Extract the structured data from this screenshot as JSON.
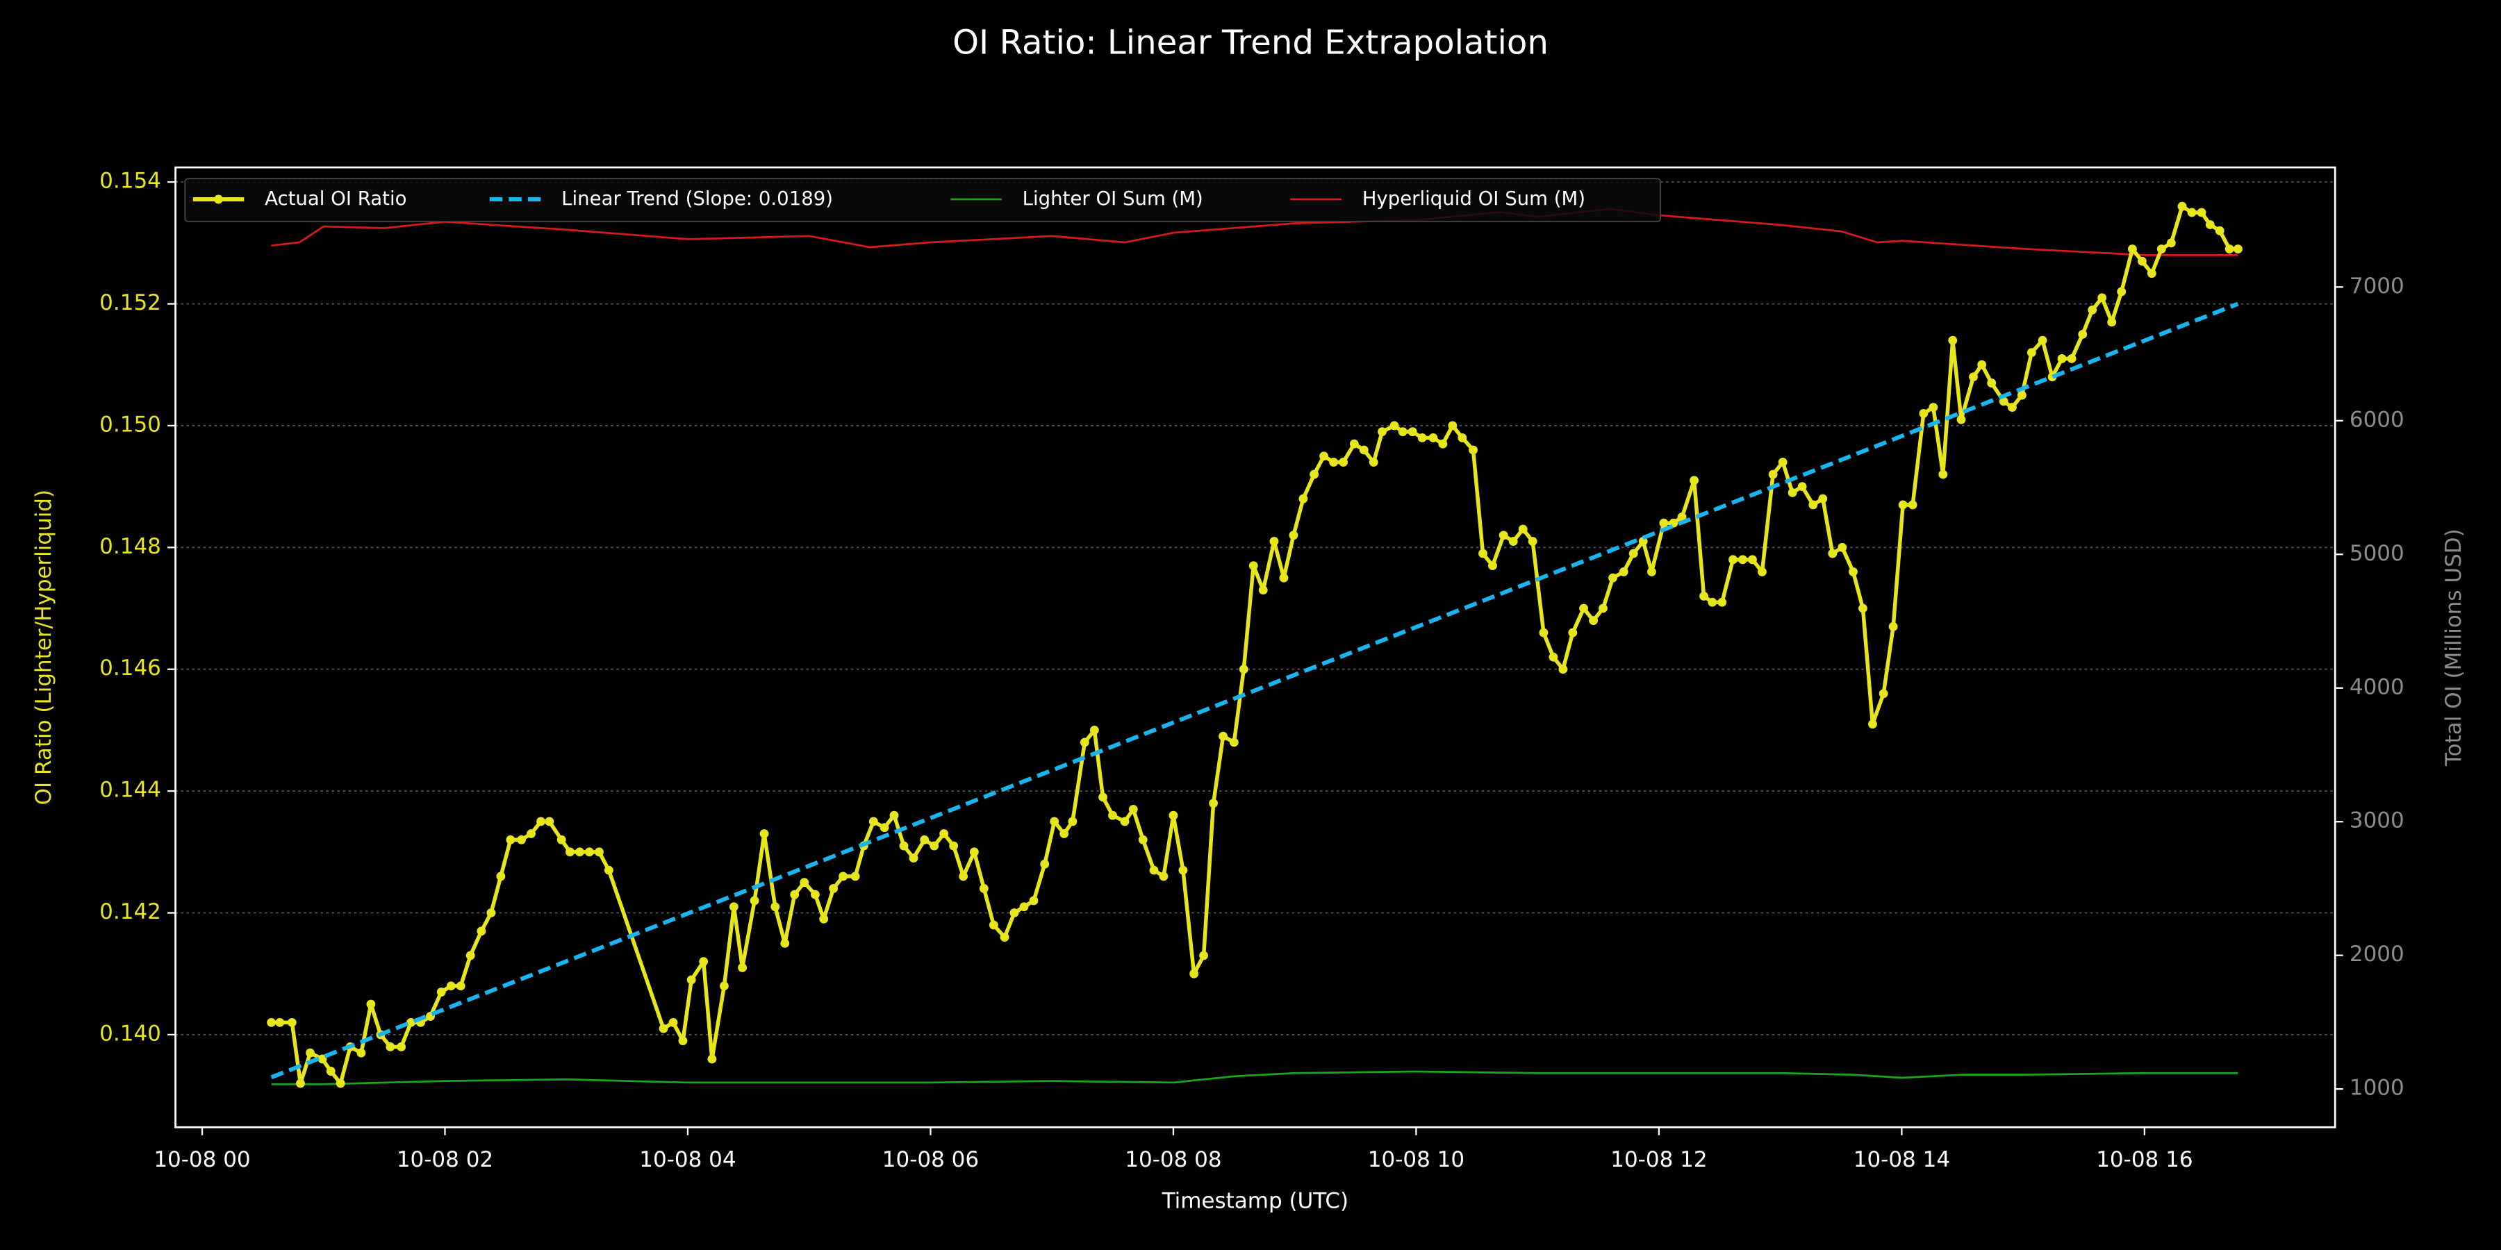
{
  "chart_data": {
    "type": "line",
    "title": "OI Ratio: Linear Trend Extrapolation",
    "xlabel": "Timestamp (UTC)",
    "ylabel": "OI Ratio (Lighter/Hyperliquid)",
    "y2label": "Total OI (Millions USD)",
    "xlim": [
      -0.22,
      17.57
    ],
    "xticks": [
      {
        "value": 0,
        "label": "10-08 00"
      },
      {
        "value": 2,
        "label": "10-08 02"
      },
      {
        "value": 4,
        "label": "10-08 04"
      },
      {
        "value": 6,
        "label": "10-08 06"
      },
      {
        "value": 8,
        "label": "10-08 08"
      },
      {
        "value": 10,
        "label": "10-08 10"
      },
      {
        "value": 12,
        "label": "10-08 12"
      },
      {
        "value": 14,
        "label": "10-08 14"
      },
      {
        "value": 16,
        "label": "10-08 16"
      }
    ],
    "ylim": [
      0.13848,
      0.15424
    ],
    "yticks": [
      {
        "value": 0.14,
        "label": "0.140"
      },
      0.142,
      0.144,
      0.146,
      0.148,
      {
        "value": 0.15,
        "label": "0.150"
      },
      0.152,
      0.154
    ],
    "y2lim": [
      714,
      7895
    ],
    "y2ticks": [
      1000,
      2000,
      3000,
      4000,
      5000,
      6000,
      7000
    ],
    "grid": true,
    "legend": "upper left",
    "series": [
      {
        "name": "Actual OI Ratio",
        "color": "#e6e61a",
        "markers": true,
        "linestyle": "solid",
        "x": [
          0.57,
          0.64,
          0.74,
          0.81,
          0.89,
          0.99,
          1.06,
          1.14,
          1.22,
          1.31,
          1.39,
          1.47,
          1.55,
          1.64,
          1.72,
          1.8,
          1.88,
          1.97,
          2.05,
          2.13,
          2.21,
          2.3,
          2.38,
          2.46,
          2.54,
          2.63,
          2.71,
          2.79,
          2.86,
          2.96,
          3.03,
          3.11,
          3.19,
          3.27,
          3.35,
          3.8,
          3.88,
          3.96,
          4.03,
          4.13,
          4.2,
          4.3,
          4.38,
          4.45,
          4.55,
          4.63,
          4.72,
          4.8,
          4.88,
          4.96,
          5.05,
          5.12,
          5.2,
          5.28,
          5.38,
          5.45,
          5.53,
          5.62,
          5.7,
          5.78,
          5.86,
          5.95,
          6.03,
          6.11,
          6.19,
          6.27,
          6.36,
          6.44,
          6.52,
          6.61,
          6.69,
          6.77,
          6.85,
          6.94,
          7.02,
          7.1,
          7.17,
          7.27,
          7.35,
          7.42,
          7.5,
          7.6,
          7.67,
          7.75,
          7.84,
          7.92,
          8.0,
          8.08,
          8.17,
          8.25,
          8.33,
          8.41,
          8.5,
          8.58,
          8.66,
          8.74,
          8.83,
          8.91,
          8.99,
          9.07,
          9.16,
          9.24,
          9.32,
          9.4,
          9.49,
          9.57,
          9.65,
          9.72,
          9.82,
          9.89,
          9.97,
          10.05,
          10.14,
          10.22,
          10.3,
          10.38,
          10.47,
          10.55,
          10.63,
          10.72,
          10.8,
          10.88,
          10.96,
          11.05,
          11.13,
          11.21,
          11.29,
          11.38,
          11.46,
          11.54,
          11.62,
          11.71,
          11.79,
          11.87,
          11.94,
          12.04,
          12.12,
          12.19,
          12.29,
          12.37,
          12.44,
          12.52,
          12.61,
          12.69,
          12.77,
          12.85,
          12.94,
          13.02,
          13.1,
          13.18,
          13.27,
          13.35,
          13.43,
          13.51,
          13.6,
          13.68,
          13.76,
          13.85,
          13.93,
          14.01,
          14.09,
          14.18,
          14.26,
          14.34,
          14.42,
          14.49,
          14.59,
          14.66,
          14.74,
          14.84,
          14.91,
          14.99,
          15.07,
          15.16,
          15.24,
          15.32,
          15.4,
          15.49,
          15.57,
          15.65,
          15.73,
          15.81,
          15.9,
          15.98,
          16.06,
          16.14,
          16.22,
          16.31,
          16.39,
          16.47,
          16.54,
          16.62,
          16.7,
          16.77
        ],
        "values": [
          0.1402,
          0.1402,
          0.1402,
          0.1392,
          0.1397,
          0.1396,
          0.1394,
          0.1392,
          0.1398,
          0.1397,
          0.1405,
          0.14,
          0.1398,
          0.1398,
          0.1402,
          0.1402,
          0.1403,
          0.1407,
          0.1408,
          0.1408,
          0.1413,
          0.1417,
          0.142,
          0.1426,
          0.1432,
          0.1432,
          0.1433,
          0.1435,
          0.1435,
          0.1432,
          0.143,
          0.143,
          0.143,
          0.143,
          0.1427,
          0.1401,
          0.1402,
          0.1399,
          0.1409,
          0.1412,
          0.1396,
          0.1408,
          0.1421,
          0.1411,
          0.1422,
          0.1433,
          0.1421,
          0.1415,
          0.1423,
          0.1425,
          0.1423,
          0.1419,
          0.1424,
          0.1426,
          0.1426,
          0.1431,
          0.1435,
          0.1434,
          0.1436,
          0.1431,
          0.1429,
          0.1432,
          0.1431,
          0.1433,
          0.1431,
          0.1426,
          0.143,
          0.1424,
          0.1418,
          0.1416,
          0.142,
          0.1421,
          0.1422,
          0.1428,
          0.1435,
          0.1433,
          0.1435,
          0.1448,
          0.145,
          0.1439,
          0.1436,
          0.1435,
          0.1437,
          0.1432,
          0.1427,
          0.1426,
          0.1436,
          0.1427,
          0.141,
          0.1413,
          0.1438,
          0.1449,
          0.1448,
          0.146,
          0.1477,
          0.1473,
          0.1481,
          0.1475,
          0.1482,
          0.1488,
          0.1492,
          0.1495,
          0.1494,
          0.1494,
          0.1497,
          0.1496,
          0.1494,
          0.1499,
          0.15,
          0.1499,
          0.1499,
          0.1498,
          0.1498,
          0.1497,
          0.15,
          0.1498,
          0.1496,
          0.1479,
          0.1477,
          0.1482,
          0.1481,
          0.1483,
          0.1481,
          0.1466,
          0.1462,
          0.146,
          0.1466,
          0.147,
          0.1468,
          0.147,
          0.1475,
          0.1476,
          0.1479,
          0.1481,
          0.1476,
          0.1484,
          0.1484,
          0.1485,
          0.1491,
          0.1472,
          0.1471,
          0.1471,
          0.1478,
          0.1478,
          0.1478,
          0.1476,
          0.1492,
          0.1494,
          0.1489,
          0.149,
          0.1487,
          0.1488,
          0.1479,
          0.148,
          0.1476,
          0.147,
          0.1451,
          0.1456,
          0.1467,
          0.1487,
          0.1487,
          0.1502,
          0.1503,
          0.1492,
          0.1514,
          0.1501,
          0.1508,
          0.151,
          0.1507,
          0.1504,
          0.1503,
          0.1505,
          0.1512,
          0.1514,
          0.1508,
          0.1511,
          0.1511,
          0.1515,
          0.1519,
          0.1521,
          0.1517,
          0.1522,
          0.1529,
          0.1527,
          0.1525,
          0.1529,
          0.153,
          0.1536,
          0.1535,
          0.1535,
          0.1533,
          0.1532,
          0.1529,
          0.1529
        ]
      },
      {
        "name": "Linear Trend (Slope: 0.0189)",
        "color": "#19b5f0",
        "markers": false,
        "linestyle": "dashed",
        "x": [
          0.57,
          16.77
        ],
        "values": [
          0.1393,
          0.152
        ]
      },
      {
        "name": "Lighter OI Sum (M)",
        "color": "#1aa51a",
        "markers": false,
        "linestyle": "solid",
        "axis": "y2",
        "x": [
          0.57,
          1,
          2,
          3,
          4,
          5,
          6,
          7,
          8,
          8.5,
          9,
          10,
          11,
          12,
          13,
          13.6,
          14,
          14.5,
          15,
          16,
          16.77
        ],
        "values": [
          1036,
          1036,
          1060,
          1072,
          1048,
          1048,
          1048,
          1060,
          1048,
          1095,
          1119,
          1131,
          1119,
          1119,
          1119,
          1107,
          1084,
          1107,
          1107,
          1119,
          1119
        ]
      },
      {
        "name": "Hyperliquid OI Sum (M)",
        "color": "#d41a1a",
        "markers": false,
        "linestyle": "solid",
        "axis": "y2",
        "x": [
          0.57,
          0.8,
          1,
          1.5,
          2,
          3,
          4,
          5,
          5.5,
          6,
          7,
          7.6,
          8,
          9,
          10,
          10.7,
          11,
          11.6,
          12,
          13,
          13.5,
          13.8,
          14,
          15,
          16,
          16.77
        ],
        "values": [
          7310,
          7334,
          7453,
          7441,
          7489,
          7429,
          7358,
          7382,
          7298,
          7334,
          7382,
          7334,
          7406,
          7477,
          7501,
          7561,
          7525,
          7585,
          7537,
          7465,
          7417,
          7334,
          7346,
          7286,
          7239,
          7239
        ]
      }
    ]
  }
}
